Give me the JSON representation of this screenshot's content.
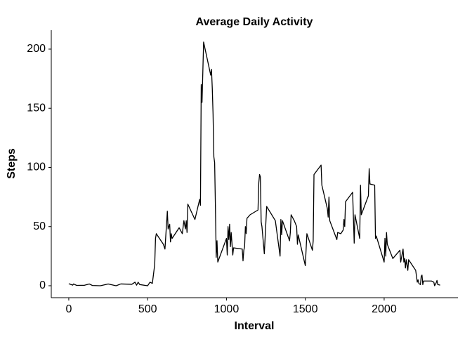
{
  "chart_data": {
    "type": "line",
    "title": "Average Daily Activity",
    "x_label": "Interval",
    "y_label": "Steps",
    "x": [
      0,
      25,
      30,
      50,
      100,
      130,
      150,
      200,
      250,
      300,
      330,
      400,
      420,
      430,
      440,
      450,
      500,
      515,
      530,
      545,
      550,
      555,
      600,
      610,
      625,
      630,
      640,
      645,
      650,
      655,
      700,
      720,
      730,
      740,
      745,
      750,
      755,
      800,
      830,
      835,
      840,
      845,
      850,
      855,
      900,
      905,
      910,
      915,
      920,
      925,
      930,
      935,
      940,
      945,
      1000,
      1005,
      1010,
      1015,
      1020,
      1025,
      1030,
      1040,
      1045,
      1100,
      1105,
      1110,
      1115,
      1120,
      1125,
      1130,
      1150,
      1200,
      1205,
      1210,
      1215,
      1220,
      1225,
      1240,
      1255,
      1310,
      1340,
      1345,
      1350,
      1355,
      1400,
      1405,
      1410,
      1430,
      1445,
      1450,
      1455,
      1500,
      1510,
      1545,
      1550,
      1555,
      1600,
      1605,
      1640,
      1645,
      1650,
      1655,
      1700,
      1705,
      1725,
      1740,
      1745,
      1750,
      1755,
      1800,
      1810,
      1815,
      1845,
      1850,
      1855,
      1900,
      1905,
      1910,
      1940,
      1945,
      1950,
      2000,
      2005,
      2010,
      2015,
      2020,
      2055,
      2100,
      2105,
      2120,
      2125,
      2130,
      2135,
      2140,
      2150,
      2155,
      2200,
      2210,
      2215,
      2220,
      2230,
      2235,
      2240,
      2245,
      2250,
      2300,
      2315,
      2320,
      2330,
      2335,
      2340,
      2355
    ],
    "series": [
      {
        "color": "#000000",
        "values": [
          1.7,
          0.5,
          1.5,
          0.3,
          0.4,
          1.5,
          0.2,
          0,
          1.5,
          0,
          1.5,
          1.2,
          3,
          0.5,
          3,
          1,
          0,
          3,
          2,
          18,
          40,
          44,
          35,
          31,
          63,
          48,
          52,
          37,
          44,
          40,
          49,
          44,
          55,
          48,
          55,
          45,
          69,
          56,
          73,
          68,
          170,
          155,
          180,
          206,
          178,
          183,
          167,
          145,
          109,
          104,
          66,
          24,
          38,
          20,
          40,
          26,
          50,
          39,
          52,
          33,
          45,
          26,
          32,
          31,
          21,
          30,
          33,
          50,
          44,
          57,
          60,
          64,
          87,
          94,
          92,
          54,
          50,
          27,
          67,
          55,
          25,
          56,
          43,
          55,
          38,
          45,
          60,
          55,
          50,
          35,
          43,
          17,
          44,
          30,
          38,
          94,
          102,
          85,
          65,
          58,
          75,
          55,
          39,
          45,
          44,
          47,
          56,
          50,
          71,
          79,
          36,
          60,
          40,
          85,
          60,
          76,
          99,
          86,
          85,
          40,
          42,
          20,
          40,
          25,
          45,
          35,
          23,
          30,
          20,
          31,
          20,
          23,
          15,
          22,
          13,
          22,
          13,
          3,
          5,
          2,
          1,
          8,
          9,
          1,
          4,
          4,
          3,
          0,
          2.5,
          4.5,
          1,
          0.5
        ]
      }
    ],
    "xlim": [
      -111,
      2468
    ],
    "ylim": [
      -10.1,
      216
    ],
    "xticks": [
      0,
      500,
      1000,
      1500,
      2000
    ],
    "yticks": [
      0,
      50,
      100,
      150,
      200
    ]
  }
}
